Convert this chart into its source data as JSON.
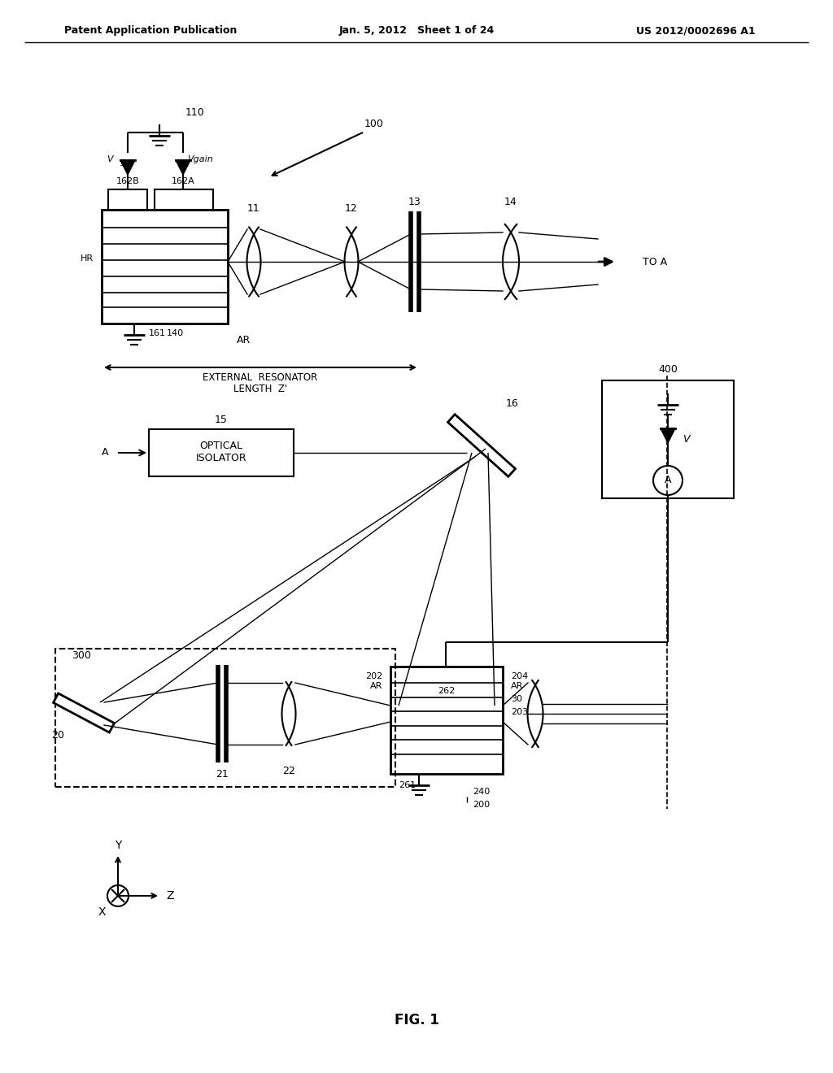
{
  "bg_color": "#ffffff",
  "line_color": "#000000",
  "header_left": "Patent Application Publication",
  "header_mid": "Jan. 5, 2012   Sheet 1 of 24",
  "header_right": "US 2012/0002696 A1",
  "figure_label": "FIG. 1",
  "fig_width": 10.24,
  "fig_height": 13.2,
  "dpi": 100
}
